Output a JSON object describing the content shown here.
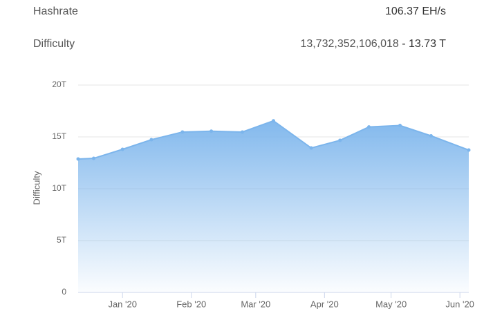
{
  "stats": [
    {
      "label": "Hashrate",
      "value": "106.37 EH/s"
    },
    {
      "label": "Difficulty",
      "value": "13,732,352,106,018",
      "separator": "-",
      "short": "13.73 T"
    }
  ],
  "chart_data": {
    "type": "area",
    "y_label": "Difficulty",
    "color": "#7cb5ec",
    "grid": true,
    "x": [
      "2019-12-12",
      "2019-12-19",
      "2020-01-01",
      "2020-01-14",
      "2020-01-28",
      "2020-02-10",
      "2020-02-24",
      "2020-03-09",
      "2020-03-26",
      "2020-04-08",
      "2020-04-21",
      "2020-05-05",
      "2020-05-19",
      "2020-06-05"
    ],
    "values": [
      12.87,
      12.93,
      13.8,
      14.73,
      15.47,
      15.55,
      15.47,
      16.55,
      13.93,
      14.67,
      15.96,
      16.1,
      15.1,
      13.73
    ],
    "xlim": [
      "2019-12-12",
      "2020-06-05"
    ],
    "xticks": [
      {
        "value": "2020-01-01",
        "label": "Jan '20"
      },
      {
        "value": "2020-02-01",
        "label": "Feb '20"
      },
      {
        "value": "2020-03-01",
        "label": "Mar '20"
      },
      {
        "value": "2020-04-01",
        "label": "Apr '20"
      },
      {
        "value": "2020-05-01",
        "label": "May '20"
      },
      {
        "value": "2020-06-01",
        "label": "Jun '20"
      }
    ],
    "ylim": [
      0,
      20
    ],
    "yticks": [
      0,
      {
        "value": 5,
        "label": "5T"
      },
      {
        "value": 10,
        "label": "10T"
      },
      {
        "value": 15,
        "label": "15T"
      },
      {
        "value": 20,
        "label": "20T"
      }
    ]
  }
}
